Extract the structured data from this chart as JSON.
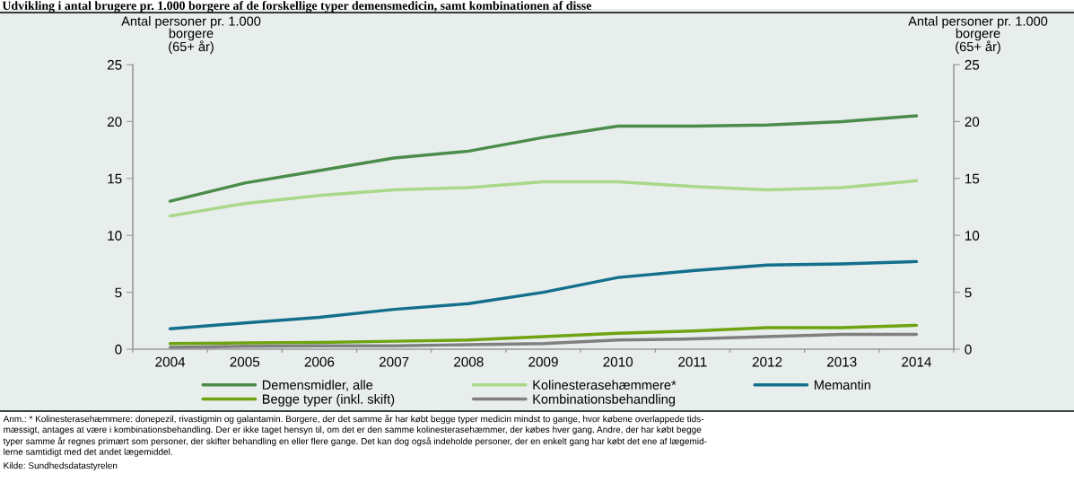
{
  "chart_data": {
    "type": "line",
    "title": "Udvikling i antal brugere pr. 1.000 borgere af de forskellige typer demensmedicin, samt kombinationen af disse",
    "ylabel": "Antal personer pr. 1.000\nborgere\n(65+ år)",
    "y2label": "Antal personer pr. 1.000\nborgere\n(65+ år)",
    "categories": [
      "2004",
      "2005",
      "2006",
      "2007",
      "2008",
      "2009",
      "2010",
      "2011",
      "2012",
      "2013",
      "2014"
    ],
    "series": [
      {
        "name": "Demensmidler, alle",
        "color": "#4a8c4a",
        "values": [
          13.0,
          14.6,
          15.7,
          16.8,
          17.4,
          18.6,
          19.6,
          19.6,
          19.7,
          20.0,
          20.5
        ]
      },
      {
        "name": "Kolinesterasehæmmere*",
        "color": "#a8d888",
        "values": [
          11.7,
          12.8,
          13.5,
          14.0,
          14.2,
          14.7,
          14.7,
          14.3,
          14.0,
          14.2,
          14.8
        ]
      },
      {
        "name": "Memantin",
        "color": "#136f8c",
        "values": [
          1.8,
          2.3,
          2.8,
          3.5,
          4.0,
          5.0,
          6.3,
          6.9,
          7.4,
          7.5,
          7.7
        ]
      },
      {
        "name": "Begge typer (inkl. skift)",
        "color": "#6fa312",
        "values": [
          0.5,
          0.55,
          0.6,
          0.7,
          0.8,
          1.1,
          1.4,
          1.6,
          1.9,
          1.9,
          2.1
        ]
      },
      {
        "name": "Kombinationsbehandling",
        "color": "#808080",
        "values": [
          0.15,
          0.25,
          0.3,
          0.3,
          0.4,
          0.5,
          0.8,
          0.9,
          1.1,
          1.3,
          1.3
        ]
      }
    ],
    "ylim": [
      0,
      25
    ],
    "yticks": [
      0,
      5,
      10,
      15,
      20,
      25
    ],
    "y2lim": [
      0,
      25
    ],
    "y2ticks": [
      0,
      5,
      10,
      15,
      20,
      25
    ],
    "grid": false,
    "legend": "bottom",
    "line_style": "solid",
    "marker": "none",
    "annotations": [
      "Anm.: * Kolinesterasehæmmere: donepezil, rivastigmin og galantamin. Borgere, der det samme år har købt begge typer medicin mindst to gange, hvor købene overlappede tids-\nmæssigt, antages at være i kombinationsbehandling. Der er ikke taget hensyn til, om det er den samme kolinesterasehæmmer, der købes hver gang. Andre, der har købt begge\ntyper samme år regnes primært som personer, der skifter behandling en eller flere gange. Det kan dog også indeholde personer, der en enkelt gang har købt det ene af lægemid-\nlerne samtidigt med det andet lægemiddel.",
      "Kilde: Sundhedsdatastyrelen"
    ]
  }
}
